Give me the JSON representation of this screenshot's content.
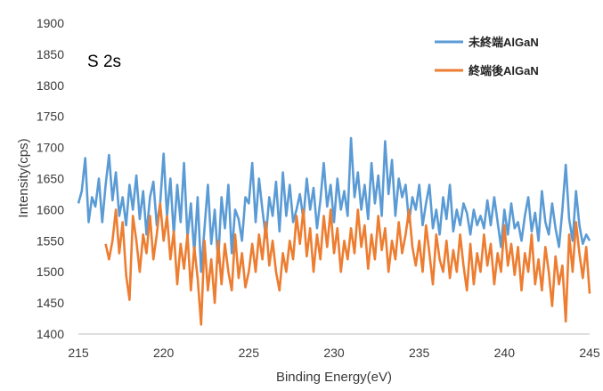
{
  "chart_data": {
    "type": "line",
    "title": "",
    "annotation": "S 2s",
    "xlabel": "Binding Energy(eV)",
    "ylabel": "Intensity(cps)",
    "xlim": [
      215,
      245
    ],
    "ylim": [
      1400,
      1900
    ],
    "x_ticks": [
      215,
      220,
      225,
      230,
      235,
      240,
      245
    ],
    "y_ticks": [
      1400,
      1450,
      1500,
      1550,
      1600,
      1650,
      1700,
      1750,
      1800,
      1850,
      1900
    ],
    "grid": false,
    "legend_position": "top-right",
    "series": [
      {
        "name": "未終端AlGaN",
        "color": "#5b9bd5",
        "points": [
          [
            215.0,
            1610
          ],
          [
            215.2,
            1630
          ],
          [
            215.4,
            1683
          ],
          [
            215.6,
            1580
          ],
          [
            215.8,
            1620
          ],
          [
            216.0,
            1605
          ],
          [
            216.2,
            1650
          ],
          [
            216.4,
            1580
          ],
          [
            216.6,
            1640
          ],
          [
            216.8,
            1688
          ],
          [
            217.0,
            1615
          ],
          [
            217.2,
            1660
          ],
          [
            217.4,
            1590
          ],
          [
            217.6,
            1620
          ],
          [
            217.8,
            1575
          ],
          [
            218.0,
            1640
          ],
          [
            218.2,
            1600
          ],
          [
            218.4,
            1655
          ],
          [
            218.6,
            1585
          ],
          [
            218.8,
            1630
          ],
          [
            219.0,
            1560
          ],
          [
            219.2,
            1620
          ],
          [
            219.4,
            1645
          ],
          [
            219.6,
            1575
          ],
          [
            219.8,
            1610
          ],
          [
            220.0,
            1690
          ],
          [
            220.2,
            1590
          ],
          [
            220.4,
            1650
          ],
          [
            220.6,
            1560
          ],
          [
            220.8,
            1640
          ],
          [
            221.0,
            1580
          ],
          [
            221.2,
            1675
          ],
          [
            221.4,
            1555
          ],
          [
            221.6,
            1610
          ],
          [
            221.8,
            1530
          ],
          [
            222.0,
            1620
          ],
          [
            222.2,
            1500
          ],
          [
            222.4,
            1570
          ],
          [
            222.6,
            1640
          ],
          [
            222.8,
            1545
          ],
          [
            223.0,
            1600
          ],
          [
            223.2,
            1515
          ],
          [
            223.4,
            1620
          ],
          [
            223.6,
            1570
          ],
          [
            223.8,
            1640
          ],
          [
            224.0,
            1530
          ],
          [
            224.2,
            1600
          ],
          [
            224.4,
            1585
          ],
          [
            224.6,
            1550
          ],
          [
            224.8,
            1620
          ],
          [
            225.0,
            1610
          ],
          [
            225.2,
            1675
          ],
          [
            225.4,
            1580
          ],
          [
            225.6,
            1650
          ],
          [
            225.8,
            1600
          ],
          [
            226.0,
            1555
          ],
          [
            226.2,
            1620
          ],
          [
            226.4,
            1590
          ],
          [
            226.6,
            1645
          ],
          [
            226.8,
            1565
          ],
          [
            227.0,
            1660
          ],
          [
            227.2,
            1590
          ],
          [
            227.4,
            1640
          ],
          [
            227.6,
            1580
          ],
          [
            227.8,
            1600
          ],
          [
            228.0,
            1625
          ],
          [
            228.2,
            1585
          ],
          [
            228.4,
            1650
          ],
          [
            228.6,
            1600
          ],
          [
            228.8,
            1635
          ],
          [
            229.0,
            1570
          ],
          [
            229.2,
            1615
          ],
          [
            229.4,
            1675
          ],
          [
            229.6,
            1605
          ],
          [
            229.8,
            1640
          ],
          [
            230.0,
            1580
          ],
          [
            230.2,
            1650
          ],
          [
            230.4,
            1600
          ],
          [
            230.6,
            1630
          ],
          [
            230.8,
            1590
          ],
          [
            231.0,
            1715
          ],
          [
            231.2,
            1620
          ],
          [
            231.4,
            1660
          ],
          [
            231.6,
            1600
          ],
          [
            231.8,
            1640
          ],
          [
            232.0,
            1585
          ],
          [
            232.2,
            1675
          ],
          [
            232.4,
            1610
          ],
          [
            232.6,
            1655
          ],
          [
            232.8,
            1590
          ],
          [
            233.0,
            1710
          ],
          [
            233.2,
            1625
          ],
          [
            233.4,
            1680
          ],
          [
            233.6,
            1590
          ],
          [
            233.8,
            1650
          ],
          [
            234.0,
            1620
          ],
          [
            234.2,
            1640
          ],
          [
            234.4,
            1580
          ],
          [
            234.6,
            1620
          ],
          [
            234.8,
            1600
          ],
          [
            235.0,
            1640
          ],
          [
            235.2,
            1575
          ],
          [
            235.4,
            1610
          ],
          [
            235.6,
            1640
          ],
          [
            235.8,
            1570
          ],
          [
            236.0,
            1600
          ],
          [
            236.2,
            1560
          ],
          [
            236.4,
            1620
          ],
          [
            236.6,
            1585
          ],
          [
            236.8,
            1640
          ],
          [
            237.0,
            1565
          ],
          [
            237.2,
            1600
          ],
          [
            237.4,
            1575
          ],
          [
            237.6,
            1610
          ],
          [
            237.8,
            1595
          ],
          [
            238.0,
            1560
          ],
          [
            238.2,
            1600
          ],
          [
            238.4,
            1575
          ],
          [
            238.6,
            1590
          ],
          [
            238.8,
            1570
          ],
          [
            239.0,
            1615
          ],
          [
            239.2,
            1575
          ],
          [
            239.4,
            1620
          ],
          [
            239.6,
            1580
          ],
          [
            239.8,
            1540
          ],
          [
            240.0,
            1600
          ],
          [
            240.2,
            1560
          ],
          [
            240.4,
            1610
          ],
          [
            240.6,
            1570
          ],
          [
            240.8,
            1580
          ],
          [
            241.0,
            1550
          ],
          [
            241.2,
            1590
          ],
          [
            241.4,
            1620
          ],
          [
            241.6,
            1565
          ],
          [
            241.8,
            1595
          ],
          [
            242.0,
            1550
          ],
          [
            242.2,
            1630
          ],
          [
            242.4,
            1580
          ],
          [
            242.6,
            1560
          ],
          [
            242.8,
            1610
          ],
          [
            243.0,
            1570
          ],
          [
            243.2,
            1540
          ],
          [
            243.4,
            1600
          ],
          [
            243.6,
            1672
          ],
          [
            243.8,
            1585
          ],
          [
            244.0,
            1550
          ],
          [
            244.2,
            1630
          ],
          [
            244.4,
            1575
          ],
          [
            244.6,
            1545
          ],
          [
            244.8,
            1560
          ],
          [
            245.0,
            1550
          ]
        ]
      },
      {
        "name": "終端後AlGaN",
        "color": "#ed7d31",
        "points": [
          [
            216.6,
            1545
          ],
          [
            216.8,
            1520
          ],
          [
            217.0,
            1550
          ],
          [
            217.2,
            1600
          ],
          [
            217.4,
            1530
          ],
          [
            217.6,
            1580
          ],
          [
            217.8,
            1495
          ],
          [
            218.0,
            1455
          ],
          [
            218.2,
            1590
          ],
          [
            218.4,
            1550
          ],
          [
            218.6,
            1500
          ],
          [
            218.8,
            1560
          ],
          [
            219.0,
            1530
          ],
          [
            219.2,
            1590
          ],
          [
            219.4,
            1520
          ],
          [
            219.6,
            1560
          ],
          [
            219.8,
            1610
          ],
          [
            220.0,
            1550
          ],
          [
            220.2,
            1590
          ],
          [
            220.4,
            1520
          ],
          [
            220.6,
            1565
          ],
          [
            220.8,
            1480
          ],
          [
            221.0,
            1545
          ],
          [
            221.2,
            1505
          ],
          [
            221.4,
            1560
          ],
          [
            221.6,
            1470
          ],
          [
            221.8,
            1540
          ],
          [
            222.0,
            1490
          ],
          [
            222.2,
            1415
          ],
          [
            222.4,
            1550
          ],
          [
            222.6,
            1470
          ],
          [
            222.8,
            1520
          ],
          [
            223.0,
            1450
          ],
          [
            223.2,
            1550
          ],
          [
            223.4,
            1480
          ],
          [
            223.6,
            1545
          ],
          [
            223.8,
            1500
          ],
          [
            224.0,
            1470
          ],
          [
            224.2,
            1560
          ],
          [
            224.4,
            1490
          ],
          [
            224.6,
            1530
          ],
          [
            224.8,
            1475
          ],
          [
            225.0,
            1500
          ],
          [
            225.2,
            1545
          ],
          [
            225.4,
            1500
          ],
          [
            225.6,
            1560
          ],
          [
            225.8,
            1520
          ],
          [
            226.0,
            1580
          ],
          [
            226.2,
            1510
          ],
          [
            226.4,
            1550
          ],
          [
            226.6,
            1500
          ],
          [
            226.8,
            1470
          ],
          [
            227.0,
            1530
          ],
          [
            227.2,
            1500
          ],
          [
            227.4,
            1550
          ],
          [
            227.6,
            1520
          ],
          [
            227.8,
            1590
          ],
          [
            228.0,
            1545
          ],
          [
            228.2,
            1600
          ],
          [
            228.4,
            1525
          ],
          [
            228.6,
            1570
          ],
          [
            228.8,
            1500
          ],
          [
            229.0,
            1560
          ],
          [
            229.2,
            1520
          ],
          [
            229.4,
            1590
          ],
          [
            229.6,
            1540
          ],
          [
            229.8,
            1600
          ],
          [
            230.0,
            1530
          ],
          [
            230.2,
            1570
          ],
          [
            230.4,
            1500
          ],
          [
            230.6,
            1550
          ],
          [
            230.8,
            1520
          ],
          [
            231.0,
            1570
          ],
          [
            231.2,
            1530
          ],
          [
            231.4,
            1600
          ],
          [
            231.6,
            1540
          ],
          [
            231.8,
            1575
          ],
          [
            232.0,
            1505
          ],
          [
            232.2,
            1560
          ],
          [
            232.4,
            1520
          ],
          [
            232.6,
            1590
          ],
          [
            232.8,
            1535
          ],
          [
            233.0,
            1570
          ],
          [
            233.2,
            1500
          ],
          [
            233.4,
            1550
          ],
          [
            233.6,
            1520
          ],
          [
            233.8,
            1580
          ],
          [
            234.0,
            1530
          ],
          [
            234.2,
            1560
          ],
          [
            234.4,
            1600
          ],
          [
            234.6,
            1540
          ],
          [
            234.8,
            1510
          ],
          [
            235.0,
            1550
          ],
          [
            235.2,
            1500
          ],
          [
            235.4,
            1575
          ],
          [
            235.6,
            1530
          ],
          [
            235.8,
            1480
          ],
          [
            236.0,
            1560
          ],
          [
            236.2,
            1520
          ],
          [
            236.4,
            1500
          ],
          [
            236.6,
            1550
          ],
          [
            236.8,
            1490
          ],
          [
            237.0,
            1535
          ],
          [
            237.2,
            1500
          ],
          [
            237.4,
            1560
          ],
          [
            237.6,
            1510
          ],
          [
            237.8,
            1470
          ],
          [
            238.0,
            1545
          ],
          [
            238.2,
            1480
          ],
          [
            238.4,
            1530
          ],
          [
            238.6,
            1500
          ],
          [
            238.8,
            1560
          ],
          [
            239.0,
            1510
          ],
          [
            239.2,
            1545
          ],
          [
            239.4,
            1480
          ],
          [
            239.6,
            1530
          ],
          [
            239.8,
            1500
          ],
          [
            240.0,
            1575
          ],
          [
            240.2,
            1510
          ],
          [
            240.4,
            1545
          ],
          [
            240.6,
            1495
          ],
          [
            240.8,
            1540
          ],
          [
            241.0,
            1470
          ],
          [
            241.2,
            1530
          ],
          [
            241.4,
            1500
          ],
          [
            241.6,
            1560
          ],
          [
            241.8,
            1480
          ],
          [
            242.0,
            1520
          ],
          [
            242.2,
            1470
          ],
          [
            242.4,
            1540
          ],
          [
            242.6,
            1500
          ],
          [
            242.8,
            1445
          ],
          [
            243.0,
            1525
          ],
          [
            243.2,
            1480
          ],
          [
            243.4,
            1510
          ],
          [
            243.6,
            1420
          ],
          [
            243.8,
            1560
          ],
          [
            244.0,
            1500
          ],
          [
            244.2,
            1580
          ],
          [
            244.4,
            1530
          ],
          [
            244.6,
            1490
          ],
          [
            244.8,
            1540
          ],
          [
            245.0,
            1465
          ]
        ]
      }
    ]
  }
}
